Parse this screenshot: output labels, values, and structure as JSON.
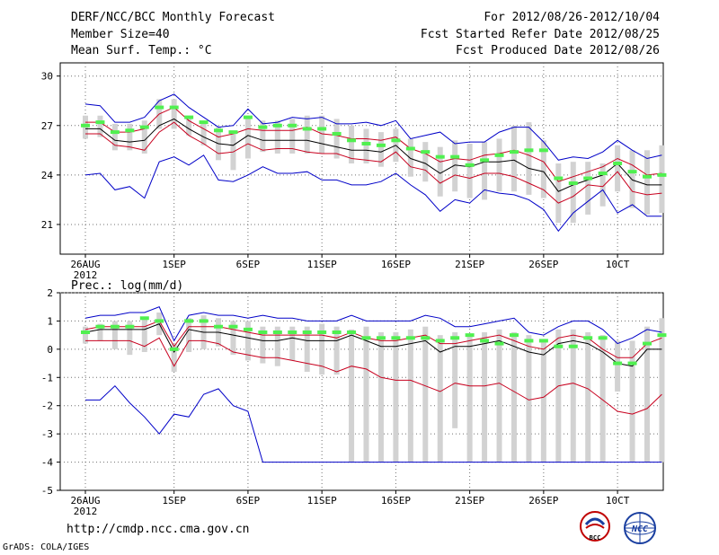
{
  "header": {
    "title": "DERF/NCC/BCC Monthly Forecast",
    "member_size": "Member Size=40",
    "variable": "Mean Surf. Temp.: °C",
    "period": "For 2012/08/26-2012/10/04",
    "fcst_started": "Fcst Started Refer Date 2012/08/25",
    "fcst_produced": "Fcst Produced Date 2012/08/26"
  },
  "footer": {
    "url": "http://cmdp.ncc.cma.gov.cn",
    "grads": "GrADS: COLA/IGES",
    "logo_bcc": "BCC",
    "logo_ncc": "NCC"
  },
  "colors": {
    "envelope": "#0000c8",
    "inner": "#c8001e",
    "mean": "#000000",
    "observed": "#50f050",
    "box": "#d2d2d2",
    "grid": "#707070"
  },
  "chart_data": [
    {
      "type": "line",
      "title": "Mean Surf. Temp.: °C",
      "ylabel": "°C",
      "ylim": [
        19.2,
        30.8
      ],
      "yticks": [
        21,
        24,
        27,
        30
      ],
      "x_day_range": [
        0,
        39
      ],
      "xticks": [
        {
          "day": 0,
          "label": "26AUG"
        },
        {
          "day": 6,
          "label": "1SEP"
        },
        {
          "day": 11,
          "label": "6SEP"
        },
        {
          "day": 16,
          "label": "11SEP"
        },
        {
          "day": 21,
          "label": "16SEP"
        },
        {
          "day": 26,
          "label": "21SEP"
        },
        {
          "day": 31,
          "label": "26SEP"
        },
        {
          "day": 36,
          "label": "10CT"
        }
      ],
      "x_year_label": "2012",
      "box_low": [
        26.2,
        26.3,
        25.5,
        25.5,
        25.3,
        26.8,
        26.8,
        26.4,
        25.8,
        24.9,
        24.3,
        25.0,
        25.4,
        25.3,
        25.3,
        25.3,
        25.3,
        25.0,
        24.7,
        24.7,
        24.5,
        24.8,
        23.9,
        23.6,
        22.7,
        23.0,
        22.6,
        22.5,
        23.0,
        23.0,
        22.8,
        22.6,
        21.1,
        21.1,
        21.6,
        22.1,
        23.0,
        22.0,
        21.6,
        21.7
      ],
      "box_high": [
        27.6,
        27.6,
        27.1,
        27.1,
        27.3,
        28.6,
        28.6,
        27.5,
        27.2,
        26.9,
        26.6,
        27.5,
        27.3,
        27.3,
        27.4,
        27.6,
        27.6,
        27.4,
        27.0,
        26.8,
        26.6,
        26.8,
        26.2,
        26.0,
        25.7,
        26.1,
        25.9,
        26.0,
        26.2,
        27.0,
        27.2,
        26.1,
        24.7,
        24.8,
        24.8,
        24.7,
        25.8,
        25.5,
        25.5,
        25.8
      ],
      "series": [
        {
          "name": "ensemble max",
          "color_key": "envelope",
          "values": [
            28.3,
            28.2,
            27.2,
            27.2,
            27.5,
            28.5,
            28.9,
            28.1,
            27.5,
            26.9,
            27.0,
            28.0,
            27.1,
            27.2,
            27.5,
            27.4,
            27.5,
            27.1,
            27.1,
            27.2,
            27.0,
            27.3,
            26.2,
            26.4,
            26.6,
            25.9,
            26.0,
            26.0,
            26.6,
            26.9,
            26.9,
            26.0,
            24.9,
            25.1,
            25.0,
            25.4,
            26.1,
            25.5,
            25.0,
            25.2
          ]
        },
        {
          "name": "upper",
          "color_key": "inner",
          "values": [
            27.2,
            27.2,
            26.6,
            26.6,
            26.8,
            27.7,
            28.1,
            27.3,
            26.8,
            26.3,
            26.5,
            26.8,
            26.7,
            26.7,
            26.7,
            26.9,
            26.5,
            26.4,
            26.2,
            26.2,
            26.1,
            26.3,
            25.6,
            25.3,
            24.8,
            25.0,
            24.9,
            25.2,
            25.3,
            25.5,
            25.2,
            24.8,
            23.6,
            23.9,
            24.2,
            24.5,
            25.0,
            24.6,
            24.0,
            24.1
          ]
        },
        {
          "name": "ensemble mean",
          "color_key": "mean",
          "values": [
            26.8,
            26.8,
            26.1,
            26.0,
            26.1,
            27.0,
            27.4,
            26.8,
            26.3,
            25.9,
            25.8,
            26.4,
            26.1,
            26.1,
            26.1,
            26.1,
            25.9,
            25.7,
            25.5,
            25.5,
            25.4,
            25.8,
            25.0,
            24.7,
            24.1,
            24.6,
            24.5,
            24.8,
            24.8,
            24.9,
            24.4,
            24.2,
            23.0,
            23.4,
            23.7,
            24.0,
            24.7,
            23.7,
            23.4,
            23.4
          ]
        },
        {
          "name": "lower",
          "color_key": "inner",
          "values": [
            26.5,
            26.5,
            25.8,
            25.7,
            25.5,
            26.6,
            27.2,
            26.4,
            25.9,
            25.3,
            25.4,
            25.9,
            25.5,
            25.6,
            25.6,
            25.4,
            25.3,
            25.3,
            25.0,
            24.9,
            24.8,
            25.4,
            24.5,
            24.3,
            23.5,
            24.0,
            23.8,
            24.1,
            24.1,
            23.9,
            23.5,
            23.1,
            22.3,
            22.7,
            23.4,
            23.3,
            24.2,
            23.0,
            22.8,
            22.9
          ]
        },
        {
          "name": "ensemble min",
          "color_key": "envelope",
          "values": [
            24.0,
            24.1,
            23.1,
            23.3,
            22.6,
            24.8,
            25.1,
            24.6,
            25.2,
            23.7,
            23.6,
            24.0,
            24.5,
            24.1,
            24.1,
            24.2,
            23.7,
            23.7,
            23.4,
            23.4,
            23.6,
            24.1,
            23.4,
            22.8,
            21.8,
            22.5,
            22.3,
            23.1,
            22.9,
            22.8,
            22.5,
            21.9,
            20.6,
            21.7,
            22.4,
            23.1,
            21.7,
            22.2,
            21.5,
            21.5
          ]
        },
        {
          "name": "observed/climate",
          "color_key": "observed",
          "values": [
            27.0,
            27.2,
            26.6,
            26.7,
            26.9,
            28.1,
            28.1,
            27.5,
            27.2,
            26.7,
            26.6,
            27.5,
            26.9,
            27.0,
            27.0,
            26.8,
            26.8,
            26.5,
            26.1,
            25.9,
            25.8,
            26.1,
            25.6,
            25.4,
            25.1,
            25.1,
            24.6,
            24.9,
            25.2,
            25.4,
            25.5,
            25.5,
            23.8,
            23.5,
            23.8,
            24.1,
            24.7,
            24.2,
            23.9,
            24.0
          ]
        }
      ]
    },
    {
      "type": "line",
      "title": "Prec.: log(mm/d)",
      "ylabel": "log(mm/d)",
      "ylim": [
        -5,
        2
      ],
      "yticks": [
        -5,
        -4,
        -3,
        -2,
        -1,
        0,
        1,
        2
      ],
      "x_day_range": [
        0,
        39
      ],
      "xticks": [
        {
          "day": 0,
          "label": "26AUG"
        },
        {
          "day": 6,
          "label": "1SEP"
        },
        {
          "day": 11,
          "label": "6SEP"
        },
        {
          "day": 16,
          "label": "11SEP"
        },
        {
          "day": 21,
          "label": "16SEP"
        },
        {
          "day": 26,
          "label": "21SEP"
        },
        {
          "day": 31,
          "label": "26SEP"
        },
        {
          "day": 36,
          "label": "10CT"
        }
      ],
      "x_year_label": "2012",
      "box_low": [
        0.2,
        0.3,
        0.0,
        -0.2,
        -0.1,
        0.5,
        -0.8,
        -0.1,
        0.0,
        0.1,
        -0.2,
        -0.4,
        -0.5,
        -0.6,
        -0.4,
        -0.8,
        -0.9,
        -0.9,
        -4.0,
        -4.0,
        -4.0,
        -4.0,
        -4.0,
        -4.0,
        -4.0,
        -2.8,
        -4.0,
        -4.0,
        -4.0,
        -4.0,
        -4.0,
        -4.0,
        -4.0,
        -4.0,
        -4.0,
        -4.0,
        -1.5,
        -4.0,
        -4.0,
        -4.0
      ],
      "box_high": [
        0.8,
        0.9,
        1.0,
        1.0,
        1.1,
        1.3,
        0.2,
        1.1,
        1.2,
        1.1,
        1.0,
        1.0,
        0.8,
        0.8,
        0.8,
        0.8,
        0.9,
        0.8,
        0.7,
        0.8,
        0.6,
        0.6,
        0.7,
        0.8,
        0.5,
        0.6,
        0.5,
        0.6,
        0.7,
        0.6,
        0.5,
        0.3,
        0.7,
        0.7,
        0.6,
        0.5,
        0.3,
        0.3,
        0.8,
        1.1
      ],
      "series": [
        {
          "name": "ensemble max",
          "color_key": "envelope",
          "values": [
            1.1,
            1.2,
            1.2,
            1.3,
            1.3,
            1.5,
            0.3,
            1.2,
            1.3,
            1.2,
            1.2,
            1.1,
            1.2,
            1.1,
            1.1,
            1.0,
            1.0,
            1.0,
            1.2,
            1.0,
            1.0,
            1.0,
            1.0,
            1.2,
            1.1,
            0.8,
            0.8,
            0.9,
            1.0,
            1.1,
            0.6,
            0.5,
            0.8,
            1.0,
            1.0,
            0.7,
            0.2,
            0.4,
            0.7,
            0.6
          ]
        },
        {
          "name": "upper",
          "color_key": "inner",
          "values": [
            0.7,
            0.8,
            0.8,
            0.8,
            0.8,
            1.0,
            0.1,
            0.8,
            0.8,
            0.8,
            0.7,
            0.6,
            0.5,
            0.5,
            0.5,
            0.5,
            0.5,
            0.4,
            0.6,
            0.4,
            0.3,
            0.3,
            0.4,
            0.5,
            0.2,
            0.2,
            0.3,
            0.4,
            0.5,
            0.3,
            0.1,
            0.0,
            0.4,
            0.5,
            0.4,
            0.0,
            -0.3,
            -0.3,
            0.2,
            0.4
          ]
        },
        {
          "name": "ensemble mean",
          "color_key": "mean",
          "values": [
            0.6,
            0.7,
            0.7,
            0.7,
            0.7,
            0.9,
            -0.1,
            0.7,
            0.6,
            0.6,
            0.5,
            0.4,
            0.3,
            0.3,
            0.4,
            0.3,
            0.3,
            0.3,
            0.5,
            0.3,
            0.1,
            0.1,
            0.2,
            0.3,
            -0.1,
            0.1,
            0.1,
            0.2,
            0.3,
            0.1,
            -0.1,
            -0.2,
            0.2,
            0.3,
            0.2,
            -0.1,
            -0.5,
            -0.6,
            0.0,
            0.0
          ]
        },
        {
          "name": "lower",
          "color_key": "inner",
          "values": [
            0.3,
            0.3,
            0.3,
            0.3,
            0.1,
            0.4,
            -0.6,
            0.3,
            0.3,
            0.2,
            -0.1,
            -0.2,
            -0.3,
            -0.3,
            -0.4,
            -0.5,
            -0.6,
            -0.8,
            -0.6,
            -0.7,
            -1.0,
            -1.1,
            -1.1,
            -1.3,
            -1.5,
            -1.2,
            -1.3,
            -1.3,
            -1.2,
            -1.5,
            -1.8,
            -1.7,
            -1.3,
            -1.2,
            -1.4,
            -1.8,
            -2.2,
            -2.3,
            -2.1,
            -1.6
          ]
        },
        {
          "name": "ensemble min",
          "color_key": "envelope",
          "values": [
            -1.8,
            -1.8,
            -1.3,
            -1.9,
            -2.4,
            -3.0,
            -2.3,
            -2.4,
            -1.6,
            -1.4,
            -2.0,
            -2.2,
            -4.0,
            -4.0,
            -4.0,
            -4.0,
            -4.0,
            -4.0,
            -4.0,
            -4.0,
            -4.0,
            -4.0,
            -4.0,
            -4.0,
            -4.0,
            -4.0,
            -4.0,
            -4.0,
            -4.0,
            -4.0,
            -4.0,
            -4.0,
            -4.0,
            -4.0,
            -4.0,
            -4.0,
            -4.0,
            -4.0,
            -4.0,
            -4.0
          ]
        },
        {
          "name": "observed/climate",
          "color_key": "observed",
          "values": [
            0.6,
            0.8,
            0.8,
            0.8,
            1.1,
            1.0,
            0.0,
            1.0,
            1.0,
            0.8,
            0.8,
            0.7,
            0.6,
            0.6,
            0.6,
            0.6,
            0.6,
            0.6,
            0.6,
            0.4,
            0.4,
            0.4,
            0.4,
            0.4,
            0.3,
            0.4,
            0.5,
            0.3,
            0.2,
            0.5,
            0.3,
            0.3,
            0.1,
            0.1,
            0.4,
            0.4,
            -0.5,
            -0.5,
            0.2,
            0.5
          ]
        }
      ]
    }
  ]
}
